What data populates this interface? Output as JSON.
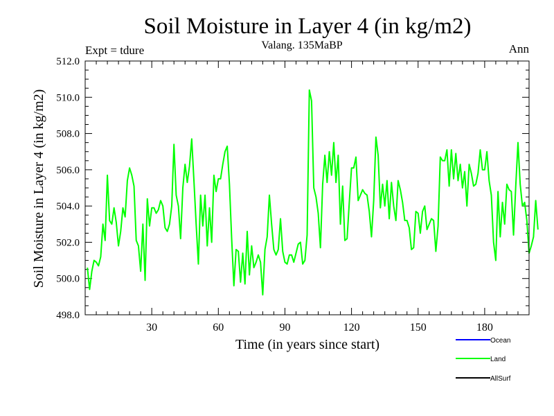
{
  "chart_data": {
    "type": "line",
    "title": "Soil Moisture in Layer 4 (in kg/m2)",
    "subtitle": "Valang.  135MaBP",
    "left_note": "Expt = tdure",
    "right_note": "Ann",
    "xlabel": "Time (in years since start)",
    "ylabel": "Soil Moisture in Layer 4 (in kg/m2)",
    "xlim": [
      0,
      200
    ],
    "ylim": [
      498,
      512
    ],
    "x_ticks": [
      30,
      60,
      90,
      120,
      150,
      180
    ],
    "x_tick_labels": [
      "30",
      "60",
      "90",
      "120",
      "150",
      "180"
    ],
    "y_ticks": [
      498,
      500,
      502,
      504,
      506,
      508,
      510,
      512
    ],
    "y_tick_labels": [
      "498.0",
      "500.0",
      "502.0",
      "504.0",
      "506.0",
      "508.0",
      "510.0",
      "512.0"
    ],
    "legend": [
      "Ocean",
      "Land",
      "AllSurf"
    ],
    "colors": {
      "Ocean": "#0000ff",
      "Land": "#00ff00",
      "AllSurf": "#000000"
    },
    "series": [
      {
        "name": "Land",
        "x_start": 1,
        "x_step": 1,
        "values": [
          500.6,
          499.4,
          500.4,
          501.0,
          500.9,
          500.7,
          501.2,
          503.0,
          502.1,
          505.7,
          503.2,
          503.0,
          503.9,
          503.1,
          501.8,
          502.6,
          503.9,
          503.4,
          505.4,
          506.1,
          505.7,
          505.1,
          502.1,
          501.8,
          500.4,
          503.0,
          499.9,
          504.4,
          502.9,
          503.9,
          503.9,
          503.6,
          503.8,
          504.3,
          504.0,
          502.8,
          502.6,
          503.0,
          504.0,
          507.4,
          504.6,
          504.0,
          502.2,
          505.0,
          506.3,
          505.3,
          506.2,
          507.7,
          505.4,
          503.0,
          500.8,
          504.6,
          502.9,
          504.6,
          501.8,
          503.9,
          502.0,
          505.7,
          504.8,
          505.5,
          505.5,
          506.3,
          507.0,
          507.3,
          505.2,
          502.2,
          499.6,
          501.6,
          501.5,
          499.8,
          501.4,
          499.7,
          502.6,
          500.2,
          501.8,
          500.6,
          500.9,
          501.3,
          500.9,
          499.1,
          501.6,
          502.3,
          504.6,
          503.0,
          501.6,
          501.3,
          501.6,
          503.3,
          501.5,
          500.9,
          500.8,
          501.3,
          501.3,
          500.9,
          501.4,
          501.9,
          502.0,
          500.8,
          501.0,
          502.4,
          510.4,
          509.8,
          505.0,
          504.5,
          503.6,
          501.7,
          505.2,
          506.8,
          505.3,
          507.0,
          505.7,
          507.5,
          505.3,
          506.8,
          503.0,
          505.1,
          502.1,
          502.2,
          504.2,
          506.1,
          506.1,
          506.7,
          504.3,
          504.6,
          504.9,
          504.7,
          504.6,
          503.7,
          502.3,
          504.3,
          507.8,
          506.8,
          503.9,
          505.2,
          504.0,
          505.4,
          503.3,
          505.3,
          504.0,
          503.2,
          505.4,
          504.9,
          504.2,
          503.2,
          503.2,
          502.8,
          501.6,
          501.7,
          503.7,
          503.6,
          502.5,
          503.7,
          504.0,
          502.7,
          503.0,
          503.3,
          503.2,
          501.5,
          502.9,
          506.7,
          506.5,
          506.5,
          507.1,
          505.1,
          507.1,
          505.5,
          506.9,
          505.4,
          506.3,
          505.0,
          505.9,
          504.0,
          506.3,
          505.8,
          505.1,
          505.2,
          505.8,
          507.1,
          506.0,
          506.0,
          507.0,
          505.4,
          504.6,
          502.0,
          501.0,
          504.8,
          502.3,
          504.2,
          503.0,
          505.2,
          504.9,
          504.8,
          502.4,
          505.1,
          507.5,
          505.2,
          504.0,
          504.2,
          503.2,
          501.4,
          501.8,
          502.3,
          504.3,
          502.7
        ]
      }
    ]
  }
}
